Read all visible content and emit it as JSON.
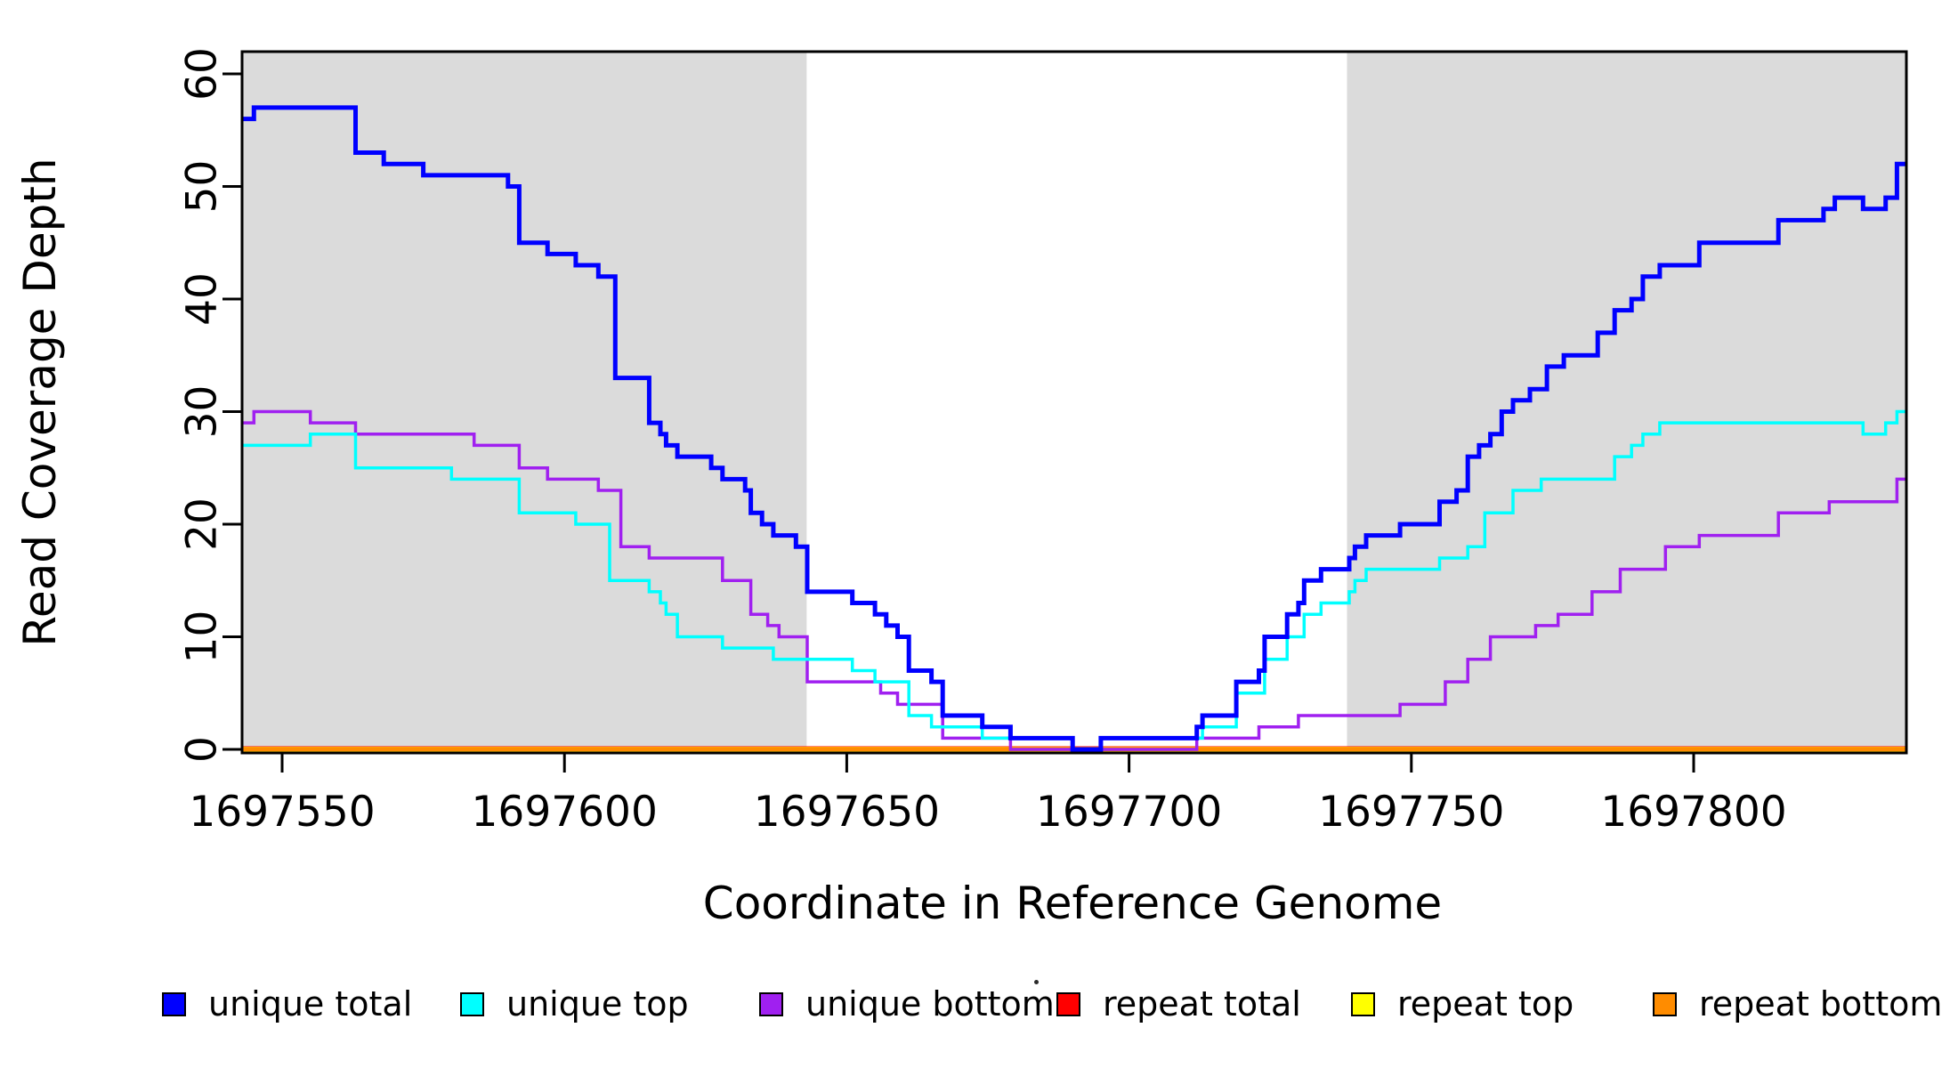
{
  "figure": {
    "background_color": "#ffffff",
    "shaded_band_color": "#DBDBDB",
    "frame_color": "#000000"
  },
  "chart_data": {
    "type": "line",
    "subtype": "step-coverage-plot",
    "title": "",
    "xlabel": "Coordinate in Reference Genome",
    "ylabel": "Read Coverage Depth",
    "xlim": [
      1697543,
      1697838
    ],
    "ylim": [
      0,
      62
    ],
    "x_ticks": [
      1697550,
      1697600,
      1697650,
      1697700,
      1697750,
      1697800
    ],
    "x_tick_labels": [
      "1697550",
      "1697600",
      "1697650",
      "1697700",
      "1697750",
      "1697800"
    ],
    "y_ticks": [
      0,
      10,
      20,
      30,
      40,
      50,
      60
    ],
    "y_tick_labels": [
      "0",
      "10",
      "20",
      "30",
      "40",
      "50",
      "60"
    ],
    "grid": false,
    "legend_position": "bottom",
    "shaded_regions": [
      {
        "x0": 1697543,
        "x1": 1697642.9,
        "color": "#DBDBDB"
      },
      {
        "x0": 1697738.6,
        "x1": 1697838,
        "color": "#DBDBDB"
      }
    ],
    "series": [
      {
        "name": "repeat total",
        "color": "#FF0000",
        "width": 7,
        "points": [
          [
            1697543,
            0
          ]
        ]
      },
      {
        "name": "repeat top",
        "color": "#FFFF00",
        "width": 5.5,
        "points": [
          [
            1697543,
            0
          ]
        ]
      },
      {
        "name": "repeat bottom",
        "color": "#FF8C00",
        "width": 4.5,
        "points": [
          [
            1697543,
            0
          ]
        ]
      },
      {
        "name": "unique bottom",
        "color": "#A020F0",
        "width": 3.5,
        "points": [
          [
            1697543,
            29
          ],
          [
            1697545,
            30
          ],
          [
            1697555,
            29
          ],
          [
            1697563,
            28
          ],
          [
            1697584,
            27
          ],
          [
            1697592,
            25
          ],
          [
            1697597,
            24
          ],
          [
            1697606,
            23
          ],
          [
            1697610,
            18
          ],
          [
            1697615,
            17
          ],
          [
            1697628,
            15
          ],
          [
            1697633,
            12
          ],
          [
            1697636,
            11
          ],
          [
            1697638,
            10
          ],
          [
            1697643,
            6
          ],
          [
            1697656,
            5
          ],
          [
            1697659,
            4
          ],
          [
            1697667,
            1
          ],
          [
            1697679,
            0
          ],
          [
            1697712,
            1
          ],
          [
            1697723,
            2
          ],
          [
            1697730,
            3
          ],
          [
            1697748,
            4
          ],
          [
            1697756,
            6
          ],
          [
            1697760,
            8
          ],
          [
            1697764,
            10
          ],
          [
            1697772,
            11
          ],
          [
            1697776,
            12
          ],
          [
            1697782,
            14
          ],
          [
            1697787,
            16
          ],
          [
            1697795,
            18
          ],
          [
            1697801,
            19
          ],
          [
            1697815,
            21
          ],
          [
            1697824,
            22
          ],
          [
            1697836,
            24
          ]
        ]
      },
      {
        "name": "unique top",
        "color": "#00FFFF",
        "width": 3.5,
        "points": [
          [
            1697543,
            27
          ],
          [
            1697555,
            28
          ],
          [
            1697563,
            25
          ],
          [
            1697580,
            24
          ],
          [
            1697592,
            21
          ],
          [
            1697602,
            20
          ],
          [
            1697608,
            15
          ],
          [
            1697615,
            14
          ],
          [
            1697617,
            13
          ],
          [
            1697618,
            12
          ],
          [
            1697620,
            10
          ],
          [
            1697628,
            9
          ],
          [
            1697637,
            8
          ],
          [
            1697651,
            7
          ],
          [
            1697655,
            6
          ],
          [
            1697661,
            3
          ],
          [
            1697665,
            2
          ],
          [
            1697674,
            1
          ],
          [
            1697690,
            0
          ],
          [
            1697695,
            1
          ],
          [
            1697713,
            2
          ],
          [
            1697719,
            5
          ],
          [
            1697724,
            8
          ],
          [
            1697728,
            10
          ],
          [
            1697731,
            12
          ],
          [
            1697734,
            13
          ],
          [
            1697739,
            14
          ],
          [
            1697740,
            15
          ],
          [
            1697742,
            16
          ],
          [
            1697755,
            17
          ],
          [
            1697760,
            18
          ],
          [
            1697763,
            21
          ],
          [
            1697768,
            23
          ],
          [
            1697773,
            24
          ],
          [
            1697786,
            26
          ],
          [
            1697789,
            27
          ],
          [
            1697791,
            28
          ],
          [
            1697794,
            29
          ],
          [
            1697830,
            28
          ],
          [
            1697834,
            29
          ],
          [
            1697836,
            30
          ]
        ]
      },
      {
        "name": "unique total",
        "color": "#0000FF",
        "width": 5,
        "points": [
          [
            1697543,
            56
          ],
          [
            1697545,
            57
          ],
          [
            1697563,
            53
          ],
          [
            1697568,
            52
          ],
          [
            1697575,
            51
          ],
          [
            1697590,
            50
          ],
          [
            1697592,
            45
          ],
          [
            1697597,
            44
          ],
          [
            1697602,
            43
          ],
          [
            1697606,
            42
          ],
          [
            1697609,
            33
          ],
          [
            1697615,
            29
          ],
          [
            1697617,
            28
          ],
          [
            1697618,
            27
          ],
          [
            1697620,
            26
          ],
          [
            1697626,
            25
          ],
          [
            1697628,
            24
          ],
          [
            1697632,
            23
          ],
          [
            1697633,
            21
          ],
          [
            1697635,
            20
          ],
          [
            1697637,
            19
          ],
          [
            1697641,
            18
          ],
          [
            1697643,
            14
          ],
          [
            1697651,
            13
          ],
          [
            1697655,
            12
          ],
          [
            1697657,
            11
          ],
          [
            1697659,
            10
          ],
          [
            1697661,
            7
          ],
          [
            1697665,
            6
          ],
          [
            1697667,
            3
          ],
          [
            1697674,
            2
          ],
          [
            1697679,
            1
          ],
          [
            1697690,
            0
          ],
          [
            1697695,
            1
          ],
          [
            1697712,
            2
          ],
          [
            1697713,
            3
          ],
          [
            1697719,
            6
          ],
          [
            1697723,
            7
          ],
          [
            1697724,
            10
          ],
          [
            1697728,
            12
          ],
          [
            1697730,
            13
          ],
          [
            1697731,
            15
          ],
          [
            1697734,
            16
          ],
          [
            1697739,
            17
          ],
          [
            1697740,
            18
          ],
          [
            1697742,
            19
          ],
          [
            1697748,
            20
          ],
          [
            1697755,
            22
          ],
          [
            1697758,
            23
          ],
          [
            1697760,
            26
          ],
          [
            1697762,
            27
          ],
          [
            1697764,
            28
          ],
          [
            1697766,
            30
          ],
          [
            1697768,
            31
          ],
          [
            1697771,
            32
          ],
          [
            1697774,
            34
          ],
          [
            1697777,
            35
          ],
          [
            1697783,
            37
          ],
          [
            1697786,
            39
          ],
          [
            1697789,
            40
          ],
          [
            1697791,
            42
          ],
          [
            1697794,
            43
          ],
          [
            1697801,
            45
          ],
          [
            1697815,
            47
          ],
          [
            1697823,
            48
          ],
          [
            1697825,
            49
          ],
          [
            1697830,
            48
          ],
          [
            1697834,
            49
          ],
          [
            1697836,
            52
          ]
        ]
      }
    ],
    "legend": [
      {
        "label": "unique total",
        "color": "#0000FF"
      },
      {
        "label": "unique top",
        "color": "#00FFFF"
      },
      {
        "label": "unique bottom",
        "color": "#A020F0"
      },
      {
        "label": "repeat total",
        "color": "#FF0000"
      },
      {
        "label": "repeat top",
        "color": "#FFFF00"
      },
      {
        "label": "repeat bottom",
        "color": "#FF8C00"
      }
    ]
  }
}
